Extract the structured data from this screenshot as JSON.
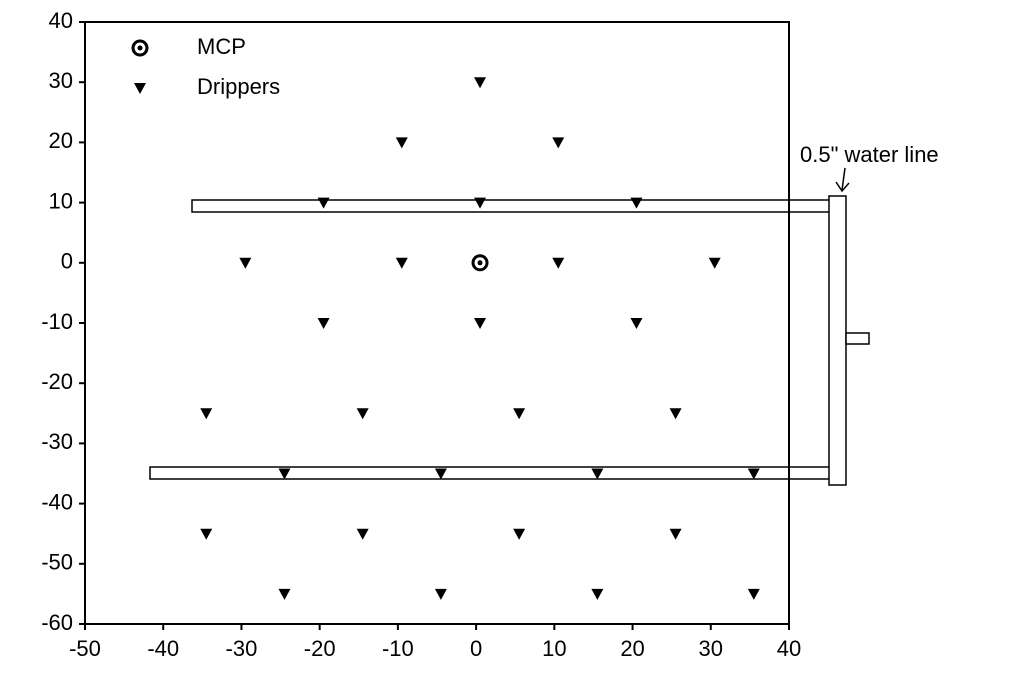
{
  "chart_data": {
    "type": "scatter",
    "annotation": "0.5\" water line",
    "xlim": [
      -50,
      40
    ],
    "ylim": [
      -60,
      40
    ],
    "xticks": [
      -50,
      -40,
      -30,
      -20,
      -10,
      0,
      10,
      20,
      30,
      40
    ],
    "yticks": [
      -60,
      -50,
      -40,
      -30,
      -20,
      -10,
      0,
      10,
      20,
      30,
      40
    ],
    "legend": "upper left",
    "series": [
      {
        "name": "MCP",
        "color": "#000000",
        "marker": "circle",
        "x": [
          0.5
        ],
        "values": [
          0
        ]
      },
      {
        "name": "Drippers",
        "color": "#000000",
        "marker": "triangle",
        "x": [
          0.5,
          -9.5,
          10.5,
          -19.5,
          0.5,
          20.5,
          -29.5,
          -9.5,
          10.5,
          30.5,
          -19.5,
          0.5,
          20.5,
          -34.5,
          -14.5,
          5.5,
          25.5,
          -24.5,
          -4.5,
          15.5,
          35.5,
          -34.5,
          -14.5,
          5.5,
          25.5,
          -24.5,
          -4.5,
          15.5,
          35.5
        ],
        "values": [
          30,
          20,
          20,
          10,
          10,
          10,
          0,
          0,
          0,
          0,
          -10,
          -10,
          -10,
          -25,
          -25,
          -25,
          -25,
          -35,
          -35,
          -35,
          -35,
          -45,
          -45,
          -45,
          -45,
          -55,
          -55,
          -55,
          -55
        ]
      }
    ]
  }
}
